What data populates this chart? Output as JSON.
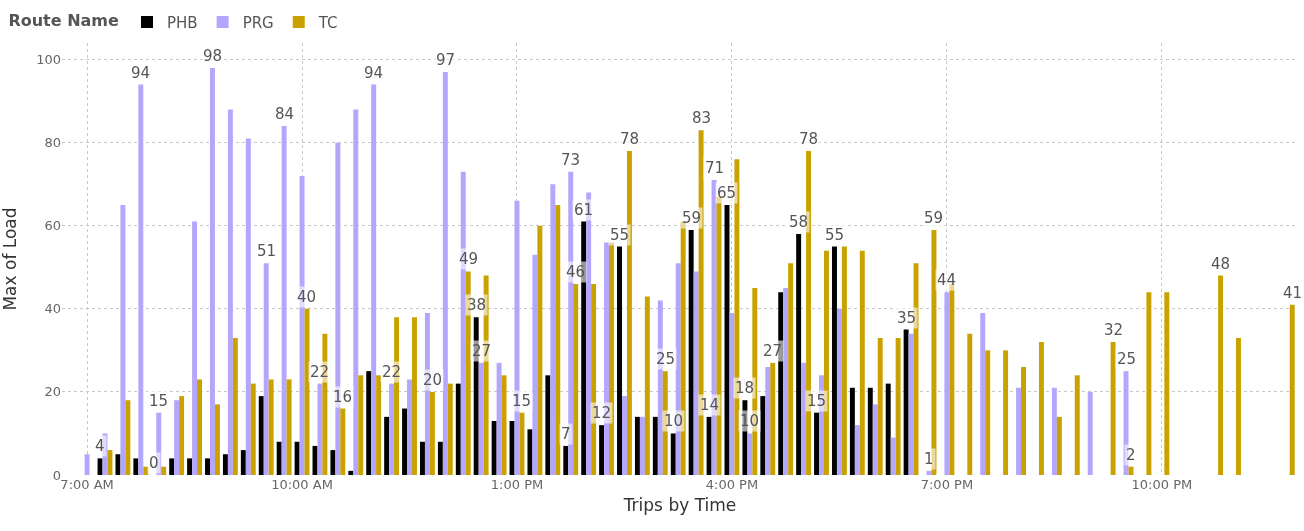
{
  "chart_data": {
    "type": "bar",
    "xlabel": "Trips by Time",
    "ylabel": "Max of Load",
    "legend_title": "Route Name",
    "x": [
      7.0,
      7.25,
      7.5,
      7.75,
      8.0,
      8.25,
      8.5,
      8.75,
      9.0,
      9.25,
      9.5,
      9.75,
      10.0,
      10.25,
      10.5,
      10.75,
      11.0,
      11.25,
      11.5,
      11.75,
      12.0,
      12.25,
      12.5,
      12.75,
      13.0,
      13.25,
      13.5,
      13.75,
      14.0,
      14.25,
      14.5,
      14.75,
      15.0,
      15.25,
      15.5,
      15.75,
      16.0,
      16.25,
      16.5,
      16.75,
      17.0,
      17.25,
      17.5,
      17.75,
      18.0,
      18.25,
      18.5,
      18.75,
      19.0,
      19.25,
      19.5,
      19.75,
      20.0,
      20.25,
      20.5,
      20.75,
      21.0,
      21.25,
      21.5,
      21.75,
      22.0,
      22.75,
      23.0,
      23.75
    ],
    "series": [
      {
        "name": "PHB",
        "color": "#000000",
        "values": [
          null,
          4,
          5,
          4,
          0,
          4,
          4,
          4,
          5,
          6,
          19,
          8,
          8,
          7,
          6,
          1,
          25,
          14,
          16,
          8,
          8,
          22,
          38,
          13,
          13,
          11,
          24,
          7,
          61,
          12,
          55,
          14,
          14,
          10,
          59,
          14,
          65,
          18,
          19,
          44,
          58,
          15,
          55,
          21,
          21,
          22,
          35,
          null,
          null,
          null,
          null,
          null,
          null,
          null,
          null,
          null,
          null,
          null,
          null,
          null,
          null,
          null,
          null,
          null
        ],
        "value_labels": [
          null,
          "4",
          null,
          null,
          "0",
          null,
          null,
          null,
          null,
          null,
          null,
          null,
          null,
          null,
          null,
          null,
          null,
          null,
          null,
          null,
          null,
          null,
          "38",
          null,
          null,
          null,
          null,
          "7",
          "61",
          "12",
          "55",
          null,
          null,
          "10",
          "59",
          "14",
          "65",
          "18",
          null,
          null,
          "58",
          "15",
          "55",
          null,
          null,
          null,
          "35",
          null,
          null,
          null,
          null,
          null,
          null,
          null,
          null,
          null,
          null,
          null,
          null,
          null,
          null,
          null,
          null,
          null
        ]
      },
      {
        "name": "PRG",
        "color": "#b4a5fd",
        "values": [
          5,
          10,
          65,
          94,
          15,
          18,
          61,
          98,
          88,
          81,
          51,
          84,
          72,
          22,
          80,
          88,
          94,
          22,
          23,
          39,
          97,
          73,
          27,
          27,
          66,
          53,
          70,
          73,
          68,
          56,
          19,
          14,
          42,
          51,
          49,
          71,
          39,
          10,
          26,
          45,
          27,
          24,
          40,
          12,
          17,
          9,
          34,
          1,
          44,
          null,
          39,
          null,
          21,
          null,
          21,
          null,
          20,
          null,
          25,
          null,
          null,
          null,
          null,
          null
        ],
        "value_labels": [
          null,
          null,
          null,
          "94",
          "15",
          null,
          null,
          "98",
          null,
          null,
          "51",
          "84",
          null,
          "22",
          null,
          null,
          "94",
          "22",
          null,
          null,
          "97",
          null,
          "27",
          null,
          null,
          null,
          null,
          "73",
          null,
          null,
          null,
          null,
          null,
          null,
          null,
          "71",
          null,
          "10",
          null,
          null,
          null,
          null,
          null,
          null,
          null,
          null,
          null,
          "1",
          "44",
          null,
          null,
          null,
          null,
          null,
          null,
          null,
          null,
          null,
          "25",
          null,
          null,
          null,
          null,
          null
        ]
      },
      {
        "name": "TC",
        "color": "#c9a200",
        "values": [
          null,
          6,
          18,
          2,
          2,
          19,
          23,
          17,
          33,
          22,
          23,
          23,
          40,
          34,
          16,
          24,
          24,
          38,
          38,
          20,
          22,
          49,
          48,
          24,
          15,
          60,
          65,
          46,
          46,
          56,
          78,
          43,
          25,
          61,
          83,
          67,
          76,
          45,
          27,
          51,
          78,
          54,
          55,
          54,
          33,
          33,
          51,
          59,
          46,
          34,
          30,
          30,
          26,
          32,
          14,
          24,
          null,
          32,
          2,
          44,
          44,
          48,
          33,
          41
        ],
        "value_labels": [
          null,
          null,
          null,
          null,
          null,
          null,
          null,
          null,
          null,
          null,
          null,
          null,
          "40",
          null,
          "16",
          null,
          null,
          null,
          null,
          "20",
          null,
          "49",
          null,
          null,
          "15",
          null,
          null,
          "46",
          null,
          null,
          "78",
          null,
          "25",
          null,
          "83",
          null,
          null,
          null,
          "27",
          null,
          "78",
          null,
          null,
          null,
          null,
          null,
          null,
          "59",
          null,
          null,
          null,
          null,
          null,
          null,
          null,
          null,
          null,
          "32",
          "2",
          null,
          null,
          "48",
          null,
          "41"
        ]
      }
    ],
    "xlim": [
      6.65,
      23.9
    ],
    "xticks": [
      {
        "value": 7,
        "label": "7:00 AM"
      },
      {
        "value": 10,
        "label": "10:00 AM"
      },
      {
        "value": 13,
        "label": "1:00 PM"
      },
      {
        "value": 16,
        "label": "4:00 PM"
      },
      {
        "value": 19,
        "label": "7:00 PM"
      },
      {
        "value": 22,
        "label": "10:00 PM"
      }
    ],
    "ylim": [
      0,
      104
    ],
    "yticks": [
      0,
      20,
      40,
      60,
      80,
      100
    ],
    "grid": true,
    "legend": "top left"
  }
}
